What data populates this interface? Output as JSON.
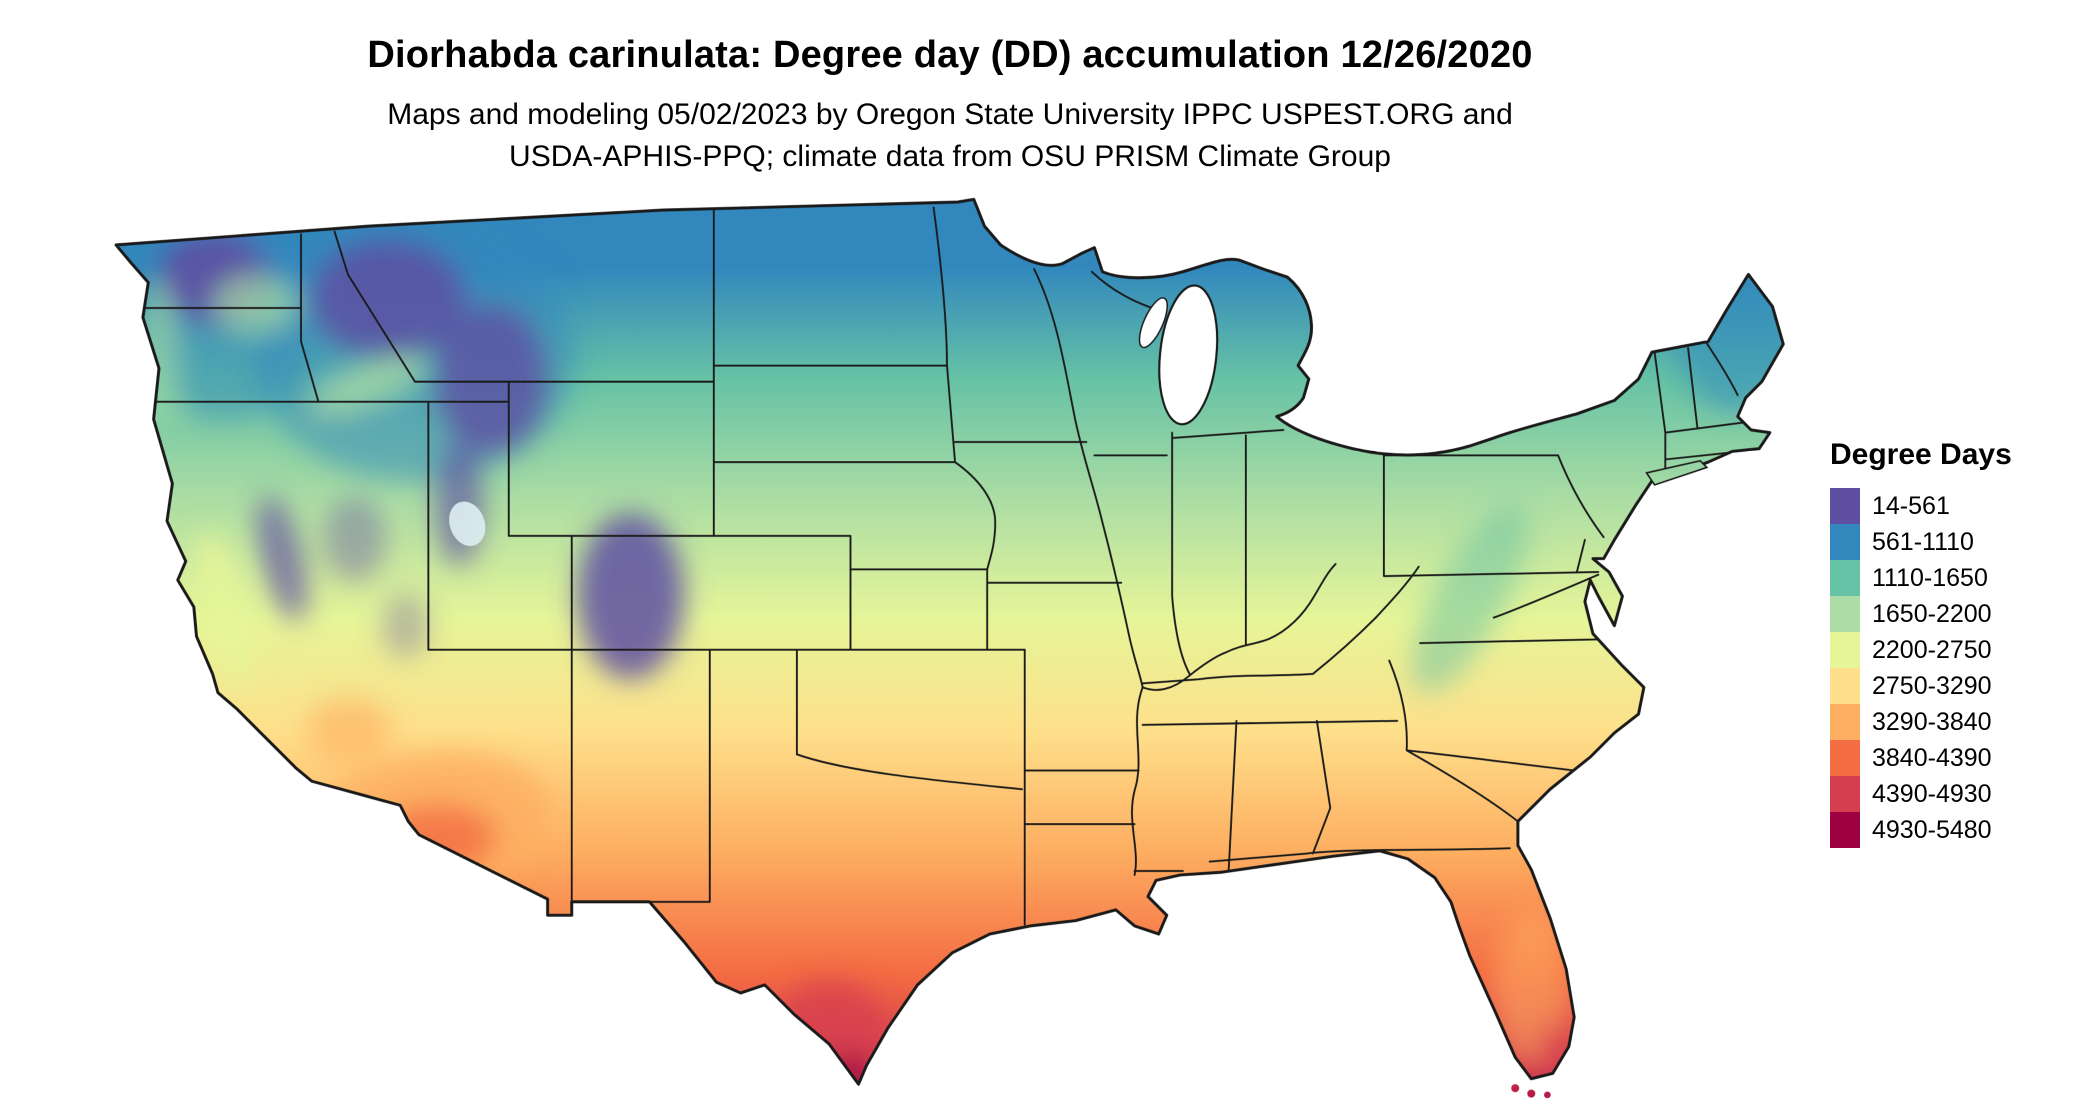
{
  "header": {
    "title": "Diorhabda carinulata: Degree day (DD) accumulation 12/26/2020",
    "subtitle_line1": "Maps and modeling 05/02/2023 by Oregon State University IPPC USPEST.ORG and",
    "subtitle_line2": "USDA-APHIS-PPQ; climate data from OSU PRISM Climate Group"
  },
  "map": {
    "area": "Continental United States",
    "species": "Diorhabda carinulata",
    "metric": "Degree day (DD) accumulation",
    "date": "12/26/2020"
  },
  "legend": {
    "title": "Degree Days",
    "entries": [
      {
        "label": "14-561",
        "color": "#5e4fa2"
      },
      {
        "label": "561-1110",
        "color": "#3288bd"
      },
      {
        "label": "1110-1650",
        "color": "#66c2a5"
      },
      {
        "label": "1650-2200",
        "color": "#abdda4"
      },
      {
        "label": "2200-2750",
        "color": "#e6f598"
      },
      {
        "label": "2750-3290",
        "color": "#fee08b"
      },
      {
        "label": "3290-3840",
        "color": "#fdae61"
      },
      {
        "label": "3840-4390",
        "color": "#f46d43"
      },
      {
        "label": "4390-4930",
        "color": "#d53e4f"
      },
      {
        "label": "4930-5480",
        "color": "#9e0142"
      }
    ]
  }
}
